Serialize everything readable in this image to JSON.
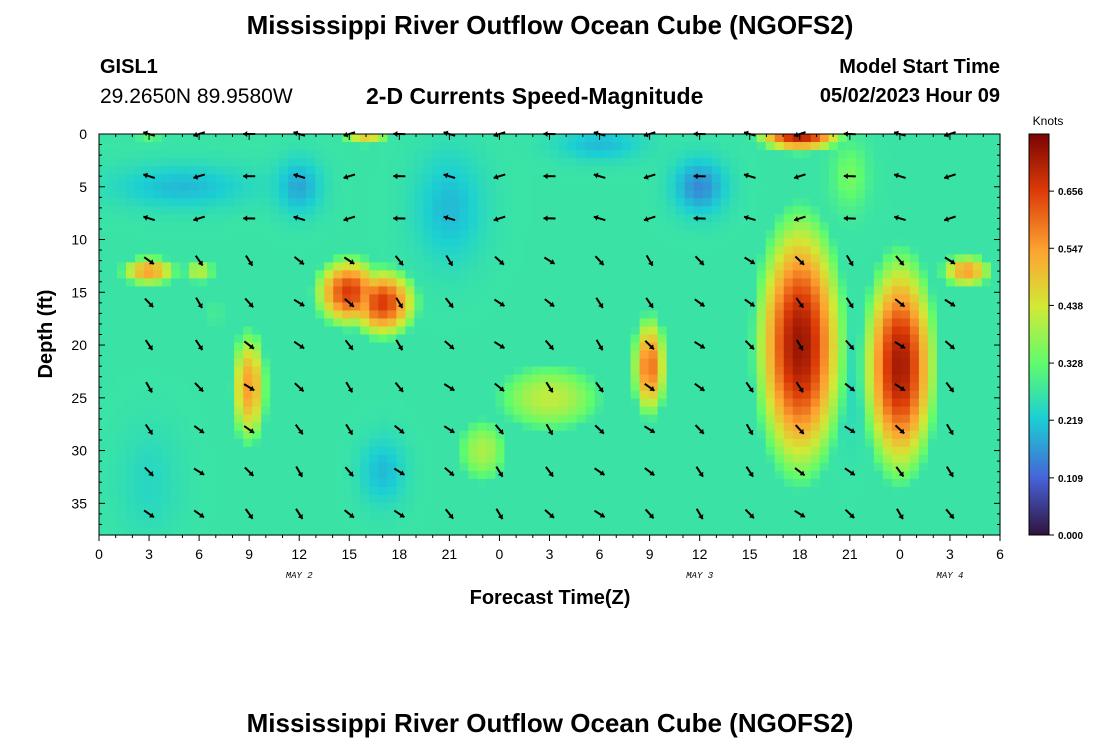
{
  "header": {
    "title": "Mississippi River Outflow Ocean Cube (NGOFS2)",
    "station": "GISL1",
    "coords": "29.2650N  89.9580W",
    "subtitle": "2-D Currents Speed-Magnitude",
    "model_start_label": "Model Start Time",
    "model_start_value": "05/02/2023 Hour 09"
  },
  "footer": {
    "title": "Mississippi River Outflow Ocean Cube (NGOFS2)"
  },
  "chart_data": {
    "type": "heatmap",
    "title": "2-D Currents Speed-Magnitude",
    "xlabel": "Forecast Time(Z)",
    "ylabel": "Depth (ft)",
    "x_range_hours": [
      0,
      54
    ],
    "x_ticks": [
      {
        "h": 0,
        "label": "0"
      },
      {
        "h": 3,
        "label": "3"
      },
      {
        "h": 6,
        "label": "6"
      },
      {
        "h": 9,
        "label": "9"
      },
      {
        "h": 12,
        "label": "12"
      },
      {
        "h": 15,
        "label": "15"
      },
      {
        "h": 18,
        "label": "18"
      },
      {
        "h": 21,
        "label": "21"
      },
      {
        "h": 24,
        "label": "0"
      },
      {
        "h": 27,
        "label": "3"
      },
      {
        "h": 30,
        "label": "6"
      },
      {
        "h": 33,
        "label": "9"
      },
      {
        "h": 36,
        "label": "12"
      },
      {
        "h": 39,
        "label": "15"
      },
      {
        "h": 42,
        "label": "18"
      },
      {
        "h": 45,
        "label": "21"
      },
      {
        "h": 48,
        "label": "0"
      },
      {
        "h": 51,
        "label": "3"
      },
      {
        "h": 54,
        "label": "6"
      }
    ],
    "date_labels": [
      {
        "h": 12,
        "label": "MAY 2"
      },
      {
        "h": 36,
        "label": "MAY 3"
      },
      {
        "h": 51,
        "label": "MAY 4"
      }
    ],
    "y_range": [
      0,
      38
    ],
    "y_ticks": [
      0,
      5,
      10,
      15,
      20,
      25,
      30,
      35
    ],
    "colorbar": {
      "unit": "Knots",
      "range": [
        0,
        0.765
      ],
      "ticks": [
        "0.000",
        "0.109",
        "0.219",
        "0.328",
        "0.438",
        "0.547",
        "0.656"
      ]
    },
    "speed_hotspots": [
      {
        "t": 15,
        "d": 15,
        "v": 0.66,
        "st": 2.5,
        "sd": 4
      },
      {
        "t": 17,
        "d": 16,
        "v": 0.66,
        "st": 2.5,
        "sd": 4
      },
      {
        "t": 3,
        "d": 13,
        "v": 0.55,
        "st": 2.2,
        "sd": 1.8
      },
      {
        "t": 6,
        "d": 13,
        "v": 0.42,
        "st": 1.5,
        "sd": 1.8
      },
      {
        "t": 9,
        "d": 24,
        "v": 0.55,
        "st": 1.4,
        "sd": 7
      },
      {
        "t": 7,
        "d": 17,
        "v": 0.3,
        "st": 1.2,
        "sd": 5
      },
      {
        "t": 33,
        "d": 22,
        "v": 0.6,
        "st": 1.3,
        "sd": 6
      },
      {
        "t": 27,
        "d": 25,
        "v": 0.42,
        "st": 5,
        "sd": 5
      },
      {
        "t": 23,
        "d": 30,
        "v": 0.4,
        "st": 2.5,
        "sd": 5
      },
      {
        "t": 42,
        "d": 20,
        "v": 0.73,
        "st": 3,
        "sd": 14
      },
      {
        "t": 42,
        "d": 0,
        "v": 0.72,
        "st": 3,
        "sd": 2
      },
      {
        "t": 48,
        "d": 22,
        "v": 0.72,
        "st": 2.5,
        "sd": 12
      },
      {
        "t": 52,
        "d": 13,
        "v": 0.55,
        "st": 2,
        "sd": 2
      },
      {
        "t": 16,
        "d": 0,
        "v": 0.5,
        "st": 2,
        "sd": 1.5
      },
      {
        "t": 3,
        "d": 0,
        "v": 0.35,
        "st": 2,
        "sd": 1.2
      }
    ],
    "slow_zones": [
      {
        "t": 3,
        "d": 33,
        "v": 0.24,
        "st": 1.8,
        "sd": 5
      },
      {
        "t": 5,
        "d": 5,
        "v": 0.2,
        "st": 4,
        "sd": 2
      },
      {
        "t": 12,
        "d": 5,
        "v": 0.18,
        "st": 1.3,
        "sd": 2.5
      },
      {
        "t": 21,
        "d": 7,
        "v": 0.2,
        "st": 2,
        "sd": 5
      },
      {
        "t": 17,
        "d": 32,
        "v": 0.2,
        "st": 1.3,
        "sd": 3
      },
      {
        "t": 30,
        "d": 1,
        "v": 0.2,
        "st": 2.5,
        "sd": 1.5
      },
      {
        "t": 36,
        "d": 5,
        "v": 0.15,
        "st": 1.5,
        "sd": 2.5
      },
      {
        "t": 45,
        "d": 4,
        "v": 0.35,
        "st": 1,
        "sd": 3
      },
      {
        "t": 45,
        "d": 25,
        "v": 0.25,
        "st": 0.7,
        "sd": 5
      }
    ],
    "vectors_times": [
      3,
      6,
      9,
      12,
      15,
      18,
      21,
      24,
      27,
      30,
      33,
      36,
      39,
      42,
      45,
      48,
      51,
      54
    ],
    "vectors_depths": [
      0,
      4,
      8,
      12,
      16,
      20,
      24,
      28,
      32,
      36
    ]
  }
}
